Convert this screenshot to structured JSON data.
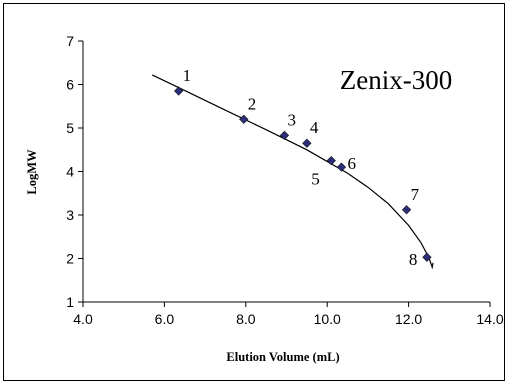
{
  "chart_data": {
    "type": "scatter",
    "title": "Zenix-300",
    "xlabel": "Elution Volume (mL)",
    "ylabel": "LogMW",
    "xlim": [
      4.0,
      14.0
    ],
    "ylim": [
      1,
      7
    ],
    "xticks": [
      "4.0",
      "6.0",
      "8.0",
      "10.0",
      "12.0",
      "14.0"
    ],
    "yticks": [
      "1",
      "2",
      "3",
      "4",
      "5",
      "6",
      "7"
    ],
    "grid": false,
    "legend": "none",
    "marker_color": "#2b2f7a",
    "points": [
      {
        "label": "1",
        "x": 6.35,
        "y": 5.85
      },
      {
        "label": "2",
        "x": 7.95,
        "y": 5.2
      },
      {
        "label": "3",
        "x": 8.95,
        "y": 4.83
      },
      {
        "label": "4",
        "x": 9.5,
        "y": 4.65
      },
      {
        "label": "5",
        "x": 10.1,
        "y": 4.25
      },
      {
        "label": "6",
        "x": 10.35,
        "y": 4.1
      },
      {
        "label": "7",
        "x": 11.95,
        "y": 3.12
      },
      {
        "label": "8",
        "x": 12.45,
        "y": 2.03
      }
    ],
    "fit_curve": {
      "x": [
        5.7,
        6.5,
        7.5,
        8.5,
        9.5,
        10.5,
        11.0,
        11.5,
        12.0,
        12.3,
        12.5,
        12.58,
        12.6
      ],
      "y": [
        6.22,
        5.86,
        5.41,
        4.96,
        4.5,
        3.96,
        3.64,
        3.26,
        2.76,
        2.37,
        2.02,
        1.8,
        1.9
      ]
    }
  }
}
